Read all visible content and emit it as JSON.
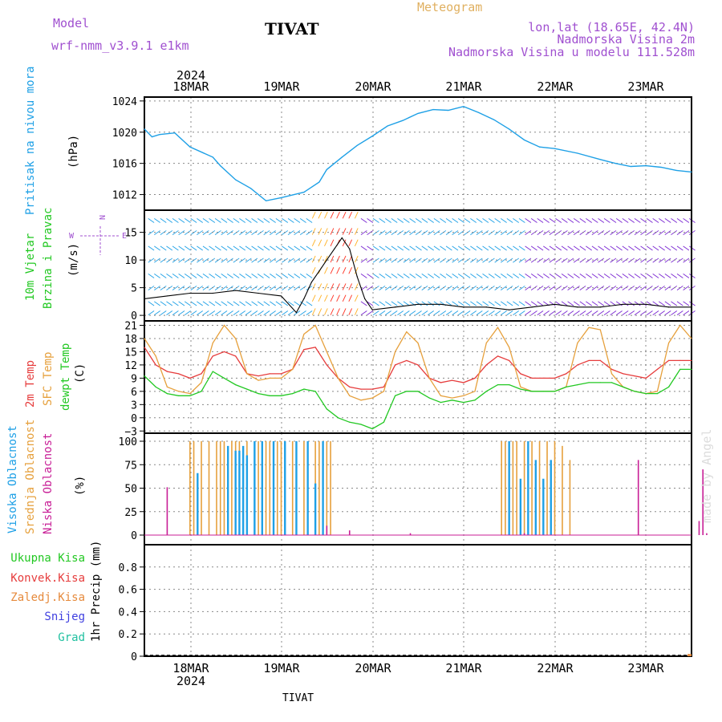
{
  "header": {
    "model_label": "Model",
    "model_name": "wrf-nmm_v3.9.1  e1km",
    "station": "TIVAT",
    "product": "Meteogram",
    "location": "lon,lat (18.65E, 42.4N)",
    "elevation": "Nadmorska Visina 2m",
    "model_elevation": "Nadmorska Visina u modelu 111.528m",
    "footer_station": "TIVAT",
    "credit": "made by Angel"
  },
  "colors": {
    "pressure": "#1ea0e6",
    "temp2m": "#e63c3c",
    "sfc": "#e6a03c",
    "dewpt": "#22c822",
    "high_cloud": "#1ea0e6",
    "mid_cloud": "#e6a03c",
    "low_cloud": "#c81e96",
    "wind_calm": "#7a28d2",
    "wind_strong": "#ff3020",
    "model_text": "#a050d0",
    "meteogram_text": "#e0b060",
    "total_precip": "#22c822",
    "conv_precip": "#e63c3c",
    "frz_precip": "#e68a3c",
    "snow": "#4040e0",
    "hail": "#20c0a0"
  },
  "axis": {
    "year": "2024",
    "date_labels": [
      "18MAR",
      "19MAR",
      "20MAR",
      "21MAR",
      "22MAR",
      "23MAR"
    ],
    "start": "2024-03-17 12:00",
    "end": "2024-03-23 12:00"
  },
  "panels": {
    "pressure": {
      "label": "Pritisak na nivou mora",
      "unit": "(hPa)"
    },
    "wind": {
      "label1": "10m Vjetar",
      "label2": "Brzina i Pravac",
      "unit": "(m/s)",
      "compass": "N",
      "compass_w": "W",
      "compass_e": "E"
    },
    "temp": {
      "label_2m": "2m Temp",
      "label_sfc": "SFC Temp",
      "label_dew": "dewpt Temp",
      "unit": "(C)"
    },
    "cloud": {
      "label_high": "Visoka Oblacnost",
      "label_mid": "Srednja Oblacnost",
      "label_low": "Niska Oblacnost",
      "unit": "(%)"
    },
    "precip": {
      "label_total": "Ukupna Kisa",
      "label_conv": "Konvek.Kisa",
      "label_frz": "Zaledj.Kisa",
      "label_snow": "Snijeg",
      "label_hail": "Grad",
      "unit": "1hr Precip (mm)"
    }
  },
  "chart_data": [
    {
      "type": "line",
      "name": "pressure",
      "ylabel": "Pritisak na nivou mora (hPa)",
      "ylim": [
        1010,
        1024.5
      ],
      "yticks": [
        1012,
        1016,
        1020,
        1024
      ],
      "x_hours": [
        0,
        2,
        4,
        8,
        12,
        18,
        20,
        24,
        28,
        32,
        36,
        42,
        46,
        48,
        52,
        56,
        60,
        64,
        68,
        72,
        76,
        80,
        84,
        88,
        92,
        96,
        100,
        104,
        106,
        108,
        114,
        120,
        124,
        128,
        132,
        136,
        140,
        144
      ],
      "series": [
        {
          "values": [
            1020.4,
            1019.4,
            1019.7,
            1019.9,
            1018.1,
            1016.8,
            1015.7,
            1013.9,
            1012.8,
            1011.2,
            1011.6,
            1012.3,
            1013.6,
            1015.2,
            1016.8,
            1018.3,
            1019.5,
            1020.8,
            1021.5,
            1022.4,
            1022.9,
            1022.8,
            1023.3,
            1022.5,
            1021.6,
            1020.4,
            1019.0,
            1018.1,
            1018.0,
            1017.9,
            1017.3,
            1016.5,
            1016.0,
            1015.6,
            1015.7,
            1015.5,
            1015.1,
            1014.9
          ]
        }
      ]
    },
    {
      "type": "line",
      "name": "wind",
      "ylabel": "10m Vjetar Brzina i Pravac (m/s)",
      "ylim": [
        -1,
        19
      ],
      "yticks": [
        0,
        5,
        10,
        15
      ],
      "x_hours": [
        0,
        6,
        12,
        18,
        24,
        30,
        36,
        40,
        42,
        44,
        46,
        48,
        50,
        52,
        54,
        56,
        58,
        60,
        66,
        72,
        78,
        84,
        90,
        96,
        102,
        108,
        114,
        120,
        126,
        132,
        138,
        144
      ],
      "series": [
        {
          "values": [
            3,
            3.5,
            4,
            4,
            4.5,
            4,
            3.5,
            0.5,
            3,
            6,
            8,
            10,
            12,
            14,
            12,
            7,
            3,
            1,
            1.5,
            2,
            2,
            1.5,
            1.5,
            1,
            1.5,
            2,
            1.5,
            1.5,
            2,
            2,
            1.5,
            1.5
          ]
        }
      ]
    },
    {
      "type": "line",
      "name": "temperature",
      "ylabel": "Temp (C)",
      "ylim": [
        -3.5,
        22
      ],
      "yticks": [
        -3,
        0,
        3,
        6,
        9,
        12,
        15,
        18,
        21
      ],
      "x_hours": [
        0,
        3,
        6,
        9,
        12,
        15,
        18,
        21,
        24,
        27,
        30,
        33,
        36,
        39,
        42,
        45,
        48,
        51,
        54,
        57,
        60,
        63,
        66,
        69,
        72,
        75,
        78,
        81,
        84,
        87,
        90,
        93,
        96,
        99,
        102,
        105,
        108,
        111,
        114,
        117,
        120,
        123,
        126,
        129,
        132,
        135,
        138,
        141,
        144
      ],
      "series": [
        {
          "name": "2m Temp",
          "values": [
            16,
            12,
            10.5,
            10,
            9,
            10,
            14,
            15,
            14,
            10,
            9.5,
            10,
            10,
            11,
            15.5,
            16,
            12,
            9,
            7,
            6.5,
            6.5,
            7,
            12,
            13,
            12,
            9,
            8,
            8.5,
            8,
            9,
            12,
            14,
            13,
            10,
            9,
            9,
            9,
            10,
            12,
            13,
            13,
            11,
            10,
            9.5,
            9,
            11,
            13,
            13,
            13
          ]
        },
        {
          "name": "SFC Temp",
          "values": [
            18,
            14,
            7,
            6,
            5.5,
            8,
            17,
            21,
            18,
            10,
            8.5,
            9,
            9,
            11,
            19,
            21,
            15,
            9,
            5,
            4,
            4.5,
            6,
            15,
            19.5,
            17,
            9,
            5,
            4.5,
            5,
            6,
            17,
            20.5,
            16,
            7,
            6,
            6,
            6,
            7,
            17,
            20.5,
            20,
            10,
            7,
            6,
            5.5,
            6,
            17,
            21,
            18
          ]
        },
        {
          "name": "dewpt Temp",
          "values": [
            9.5,
            7,
            5.5,
            5,
            5,
            6,
            10.5,
            9,
            7.5,
            6.5,
            5.5,
            5,
            5,
            5.5,
            6.5,
            6,
            2,
            0,
            -1,
            -1.5,
            -2.5,
            -1,
            5,
            6,
            6,
            4.5,
            3.5,
            4,
            3.5,
            4,
            6,
            7.5,
            7.5,
            6.5,
            6,
            6,
            6,
            7,
            7.5,
            8,
            8,
            8,
            7,
            6,
            5.5,
            5.5,
            7,
            11,
            11
          ]
        }
      ]
    },
    {
      "type": "bar",
      "name": "cloud_cover",
      "ylabel": "Oblacnost (%)",
      "ylim": [
        0,
        100
      ],
      "yticks": [
        0,
        25,
        50,
        75,
        100
      ],
      "series": [
        {
          "name": "Srednja Oblacnost",
          "x_hours": [
            12,
            13,
            15,
            17,
            19,
            20,
            21,
            23,
            24,
            25,
            27,
            29,
            30,
            32,
            33,
            35,
            36,
            37,
            39,
            40,
            42,
            43,
            45,
            46,
            48,
            49,
            94,
            95,
            97,
            98,
            100,
            102,
            104,
            106,
            108,
            110,
            112
          ],
          "values": [
            100,
            100,
            100,
            100,
            100,
            100,
            100,
            100,
            100,
            100,
            100,
            100,
            100,
            100,
            100,
            100,
            100,
            100,
            100,
            100,
            100,
            100,
            100,
            100,
            100,
            100,
            100,
            100,
            100,
            100,
            100,
            100,
            100,
            100,
            100,
            95,
            80
          ]
        },
        {
          "name": "Visoka Oblacnost",
          "x_hours": [
            14,
            22,
            24,
            25,
            26,
            27,
            29,
            31,
            34,
            37,
            40,
            43,
            45,
            47,
            96,
            99,
            101,
            103,
            105,
            107
          ],
          "values": [
            66,
            95,
            90,
            90,
            95,
            85,
            100,
            100,
            100,
            100,
            100,
            100,
            55,
            100,
            100,
            60,
            100,
            80,
            60,
            80
          ]
        },
        {
          "name": "Niska Oblacnost",
          "x_hours": [
            6,
            48,
            54,
            70,
            100,
            130,
            146,
            147,
            148
          ],
          "values": [
            51,
            10,
            5,
            2,
            2,
            80,
            15,
            70,
            2
          ]
        }
      ]
    },
    {
      "type": "bar",
      "name": "precipitation",
      "ylabel": "1hr Precip (mm)",
      "ylim": [
        0,
        1
      ],
      "yticks": [
        0,
        0.2,
        0.4,
        0.6,
        0.8
      ],
      "series": [
        {
          "name": "Ukupna Kisa",
          "x_hours": [
            144
          ],
          "values": [
            0.02
          ]
        }
      ]
    }
  ]
}
